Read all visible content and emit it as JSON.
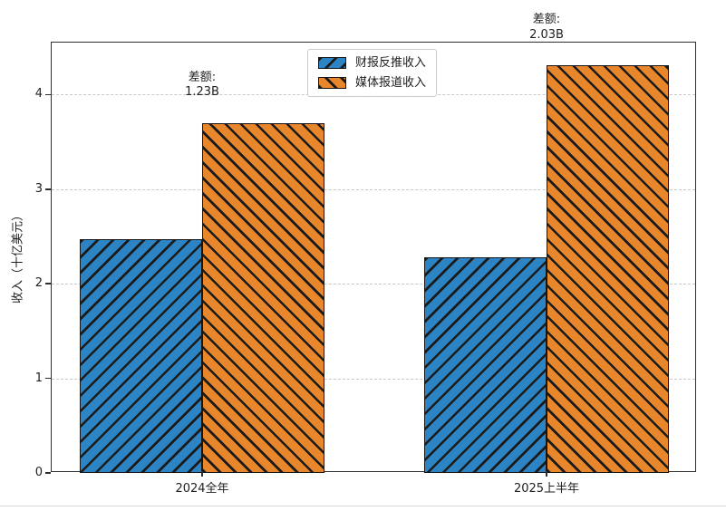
{
  "chart_data": {
    "type": "bar",
    "title": "",
    "ylabel": "收入（十亿美元）",
    "categories": [
      "2024全年",
      "2025上半年"
    ],
    "series": [
      {
        "name": "财报反推收入",
        "color": "#2d84c4",
        "hatch": "/",
        "values": [
          2.47,
          2.28
        ]
      },
      {
        "name": "媒体报道收入",
        "color": "#e8862c",
        "hatch": "\\",
        "values": [
          3.7,
          4.31
        ]
      }
    ],
    "annotations": [
      {
        "group": "2024全年",
        "line1": "差额:",
        "line2": "1.23B"
      },
      {
        "group": "2025上半年",
        "line1": "差额:",
        "line2": "2.03B"
      }
    ],
    "yticks": [
      0,
      1,
      2,
      3,
      4
    ],
    "ylim": [
      0,
      4.55
    ],
    "grid": "horizontal-dashed",
    "legend_position": "upper-center",
    "bar_edge_color": "#161616",
    "hatch_line_color": "#1b1b1b"
  }
}
